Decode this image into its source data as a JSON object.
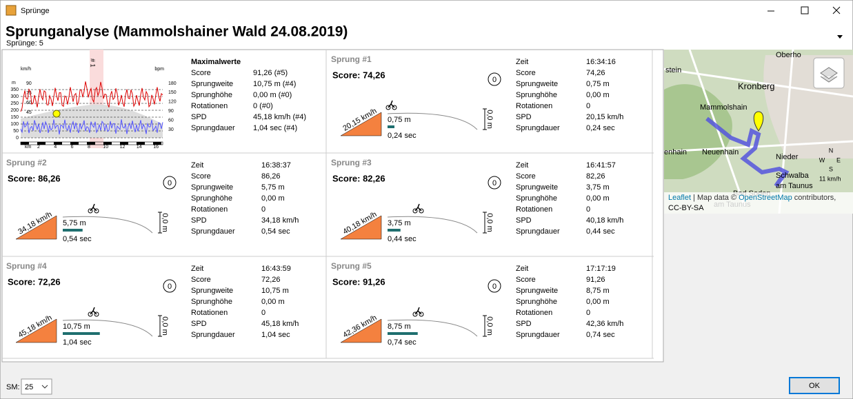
{
  "window": {
    "title": "Sprünge"
  },
  "header": {
    "title": "Sprunganalyse (Mammolshainer Wald 24.08.2019)",
    "subtitle": "Sprünge: 5"
  },
  "overview": {
    "chart": {
      "left_unit": "m",
      "speed_unit": "km/h",
      "hr_unit": "bpm",
      "left_ticks": [
        "350",
        "300",
        "250",
        "200",
        "150",
        "100",
        "50",
        "0"
      ],
      "speed_ticks": [
        "90",
        "75",
        "60",
        "45"
      ],
      "hr_ticks": [
        "180",
        "150",
        "120",
        "90",
        "60",
        "30"
      ],
      "x_unit": "km",
      "x_ticks": [
        "2",
        "4",
        "6",
        "8",
        "10",
        "12",
        "14",
        "16"
      ],
      "marker": "# 1"
    },
    "max": {
      "title": "Maximalwerte",
      "rows": [
        [
          "Score",
          "91,26 (#5)"
        ],
        [
          "Sprungweite",
          "10,75 m (#4)"
        ],
        [
          "Sprunghöhe",
          "0,00 m (#0)"
        ],
        [
          "Rotationen",
          "0 (#0)"
        ],
        [
          "SPD",
          "45,18 km/h (#4)"
        ],
        [
          "Sprungdauer",
          "1,04 sec (#4)"
        ]
      ]
    }
  },
  "jumps": [
    {
      "title": "Sprung #1",
      "score": "Score: 74,26",
      "rotations": "0",
      "speed": "20,15 km/h",
      "distance": "0,75 m",
      "duration": "0,24 sec",
      "height": "0,0 m",
      "rows": [
        [
          "Zeit",
          "16:34:16"
        ],
        [
          "Score",
          "74,26"
        ],
        [
          "Sprungweite",
          "0,75 m"
        ],
        [
          "Sprunghöhe",
          "0,00 m"
        ],
        [
          "Rotationen",
          "0"
        ],
        [
          "SPD",
          "20,15 km/h"
        ],
        [
          "Sprungdauer",
          "0,24 sec"
        ]
      ]
    },
    {
      "title": "Sprung #2",
      "score": "Score: 86,26",
      "rotations": "0",
      "speed": "34,18 km/h",
      "distance": "5,75 m",
      "duration": "0,54 sec",
      "height": "0,0 m",
      "rows": [
        [
          "Zeit",
          "16:38:37"
        ],
        [
          "Score",
          "86,26"
        ],
        [
          "Sprungweite",
          "5,75 m"
        ],
        [
          "Sprunghöhe",
          "0,00 m"
        ],
        [
          "Rotationen",
          "0"
        ],
        [
          "SPD",
          "34,18 km/h"
        ],
        [
          "Sprungdauer",
          "0,54 sec"
        ]
      ]
    },
    {
      "title": "Sprung #3",
      "score": "Score: 82,26",
      "rotations": "0",
      "speed": "40,18 km/h",
      "distance": "3,75 m",
      "duration": "0,44 sec",
      "height": "0,0 m",
      "rows": [
        [
          "Zeit",
          "16:41:57"
        ],
        [
          "Score",
          "82,26"
        ],
        [
          "Sprungweite",
          "3,75 m"
        ],
        [
          "Sprunghöhe",
          "0,00 m"
        ],
        [
          "Rotationen",
          "0"
        ],
        [
          "SPD",
          "40,18 km/h"
        ],
        [
          "Sprungdauer",
          "0,44 sec"
        ]
      ]
    },
    {
      "title": "Sprung #4",
      "score": "Score: 72,26",
      "rotations": "0",
      "speed": "45,18 km/h",
      "distance": "10,75 m",
      "duration": "1,04 sec",
      "height": "0,0 m",
      "rows": [
        [
          "Zeit",
          "16:43:59"
        ],
        [
          "Score",
          "72,26"
        ],
        [
          "Sprungweite",
          "10,75 m"
        ],
        [
          "Sprunghöhe",
          "0,00 m"
        ],
        [
          "Rotationen",
          "0"
        ],
        [
          "SPD",
          "45,18 km/h"
        ],
        [
          "Sprungdauer",
          "1,04 sec"
        ]
      ]
    },
    {
      "title": "Sprung #5",
      "score": "Score: 91,26",
      "rotations": "0",
      "speed": "42,36 km/h",
      "distance": "8,75 m",
      "duration": "0,74 sec",
      "height": "0,0 m",
      "rows": [
        [
          "Zeit",
          "17:17:19"
        ],
        [
          "Score",
          "91,26"
        ],
        [
          "Sprungweite",
          "8,75 m"
        ],
        [
          "Sprunghöhe",
          "0,00 m"
        ],
        [
          "Rotationen",
          "0"
        ],
        [
          "SPD",
          "42,36 km/h"
        ],
        [
          "Sprungdauer",
          "0,74 sec"
        ]
      ]
    }
  ],
  "map": {
    "places": [
      "stein",
      "Oberho",
      "Kronberg",
      "Mammolshain",
      "enhain",
      "Neuenhain",
      "Nieder",
      "Schwalba",
      "am Taunus",
      "Bad Soden",
      "am Taunus"
    ],
    "compass": [
      "N",
      "W",
      "E",
      "S"
    ],
    "speed": "11 km/h",
    "attribution": {
      "leaflet": "Leaflet",
      "middle": " | Map data © ",
      "osm": "OpenStreetMap",
      "end": " contributors,",
      "license": "CC-BY-SA"
    }
  },
  "footer": {
    "sm_label": "SM:",
    "sm_value": "25",
    "ok": "OK"
  }
}
